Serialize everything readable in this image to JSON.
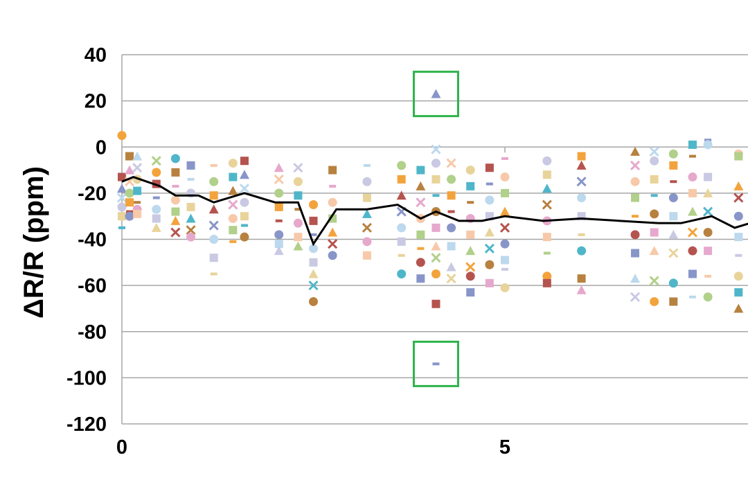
{
  "chart_data": {
    "type": "scatter",
    "title": "",
    "xlabel": "",
    "ylabel": "ΔR/R (ppm)",
    "xlim": [
      0,
      8.2
    ],
    "ylim": [
      -120,
      40
    ],
    "y_ticks": [
      "40",
      "20",
      "0",
      "-20",
      "-40",
      "-60",
      "-80",
      "-100",
      "-120"
    ],
    "x_ticks": [
      "0",
      "5"
    ],
    "grid": "horizontal",
    "legend": "none",
    "colors": {
      "mean_line": "#000000",
      "highlight_box": "#2db34a",
      "grid": "#a6a6a6",
      "palette": [
        "#f3a33c",
        "#4fb6c9",
        "#b5534f",
        "#b7813f",
        "#8895c9",
        "#e6a8cc",
        "#bcd9ed",
        "#f7c9a9",
        "#c9c9e3",
        "#b1d08a",
        "#e8d39a"
      ]
    },
    "mean_series": {
      "name": "",
      "x": [
        0,
        0.15,
        0.5,
        0.7,
        1.0,
        1.2,
        1.6,
        2.0,
        2.3,
        2.5,
        2.8,
        3.2,
        3.6,
        3.9,
        4.1,
        4.4,
        4.7,
        5.0,
        5.5,
        6.0,
        6.5,
        7.0,
        7.3,
        7.7,
        8.0,
        8.2
      ],
      "y": [
        -15,
        -13,
        -17,
        -21,
        -21,
        -24,
        -20,
        -24,
        -24,
        -42,
        -27,
        -27,
        -25,
        -31,
        -28,
        -32,
        -32,
        -30,
        -32,
        -31,
        -32,
        -33,
        -33,
        -30,
        -35,
        -33
      ]
    },
    "columns": [
      {
        "x": 0.0,
        "y": [
          5,
          -13,
          -18,
          -22,
          -26,
          -30,
          -35
        ]
      },
      {
        "x": 0.1,
        "y": [
          -4,
          -10,
          -15,
          -20,
          -24,
          -28,
          -30
        ]
      },
      {
        "x": 0.2,
        "y": [
          -4,
          -9,
          -14,
          -19,
          -24,
          -27,
          -29
        ]
      },
      {
        "x": 0.45,
        "y": [
          -6,
          -11,
          -16,
          -22,
          -27,
          -31,
          -35
        ]
      },
      {
        "x": 0.7,
        "y": [
          -5,
          -11,
          -17,
          -23,
          -28,
          -32,
          -37
        ]
      },
      {
        "x": 0.9,
        "y": [
          -8,
          -14,
          -20,
          -26,
          -31,
          -36,
          -39
        ]
      },
      {
        "x": 1.2,
        "y": [
          -8,
          -15,
          -21,
          -27,
          -34,
          -40,
          -48,
          -55
        ]
      },
      {
        "x": 1.45,
        "y": [
          -7,
          -13,
          -19,
          -25,
          -31,
          -36,
          -41
        ]
      },
      {
        "x": 1.6,
        "y": [
          -6,
          -12,
          -18,
          -24,
          -30,
          -34,
          -39
        ]
      },
      {
        "x": 2.05,
        "y": [
          -9,
          -14,
          -20,
          -26,
          -32,
          -38,
          -42,
          -45
        ]
      },
      {
        "x": 2.3,
        "y": [
          -9,
          -15,
          -21,
          -27,
          -33,
          -39,
          -43
        ]
      },
      {
        "x": 2.5,
        "y": [
          -25,
          -32,
          -38,
          -44,
          -50,
          -55,
          -60,
          -67
        ]
      },
      {
        "x": 2.75,
        "y": [
          -10,
          -17,
          -24,
          -31,
          -37,
          -42,
          -47
        ]
      },
      {
        "x": 3.2,
        "y": [
          -8,
          -15,
          -22,
          -29,
          -35,
          -41,
          -47
        ]
      },
      {
        "x": 3.65,
        "y": [
          -8,
          -14,
          -21,
          -28,
          -35,
          -41,
          -47,
          -55
        ]
      },
      {
        "x": 3.9,
        "y": [
          -10,
          -17,
          -24,
          -31,
          -38,
          -44,
          -50,
          -57
        ]
      },
      {
        "x": 4.1,
        "y": [
          23,
          -1,
          -7,
          -14,
          -21,
          -28,
          -35,
          -43,
          -48,
          -55,
          -68,
          -94
        ]
      },
      {
        "x": 4.3,
        "y": [
          -7,
          -14,
          -21,
          -28,
          -35,
          -43,
          -52,
          -57
        ]
      },
      {
        "x": 4.55,
        "y": [
          -10,
          -17,
          -24,
          -31,
          -38,
          -45,
          -52,
          -56,
          -63
        ]
      },
      {
        "x": 4.8,
        "y": [
          -9,
          -16,
          -23,
          -30,
          -37,
          -44,
          -51,
          -59
        ]
      },
      {
        "x": 5.0,
        "y": [
          -5,
          -13,
          -20,
          -28,
          -35,
          -42,
          -49,
          -53,
          -61
        ]
      },
      {
        "x": 5.55,
        "y": [
          -6,
          -12,
          -18,
          -25,
          -32,
          -39,
          -46,
          -56,
          -59
        ]
      },
      {
        "x": 6.0,
        "y": [
          -4,
          -8,
          -15,
          -22,
          -30,
          -38,
          -45,
          -57,
          -62
        ]
      },
      {
        "x": 6.7,
        "y": [
          -2,
          -8,
          -15,
          -22,
          -30,
          -38,
          -46,
          -57,
          -65
        ]
      },
      {
        "x": 6.95,
        "y": [
          -2,
          -6,
          -14,
          -21,
          -29,
          -37,
          -45,
          -58,
          -67
        ]
      },
      {
        "x": 7.2,
        "y": [
          -3,
          -8,
          -15,
          -22,
          -30,
          -38,
          -46,
          -59,
          -67
        ]
      },
      {
        "x": 7.45,
        "y": [
          1,
          -4,
          -13,
          -20,
          -28,
          -37,
          -45,
          -55,
          -65
        ]
      },
      {
        "x": 7.65,
        "y": [
          3,
          1,
          -13,
          -20,
          -28,
          -37,
          -45,
          -56,
          -65
        ]
      },
      {
        "x": 8.05,
        "y": [
          -3,
          -4,
          -17,
          -22,
          -30,
          -39,
          -47,
          -56,
          -63,
          -70
        ]
      }
    ],
    "highlights": [
      {
        "x": 4.1,
        "y": 23
      },
      {
        "x": 4.1,
        "y": -94
      }
    ]
  }
}
